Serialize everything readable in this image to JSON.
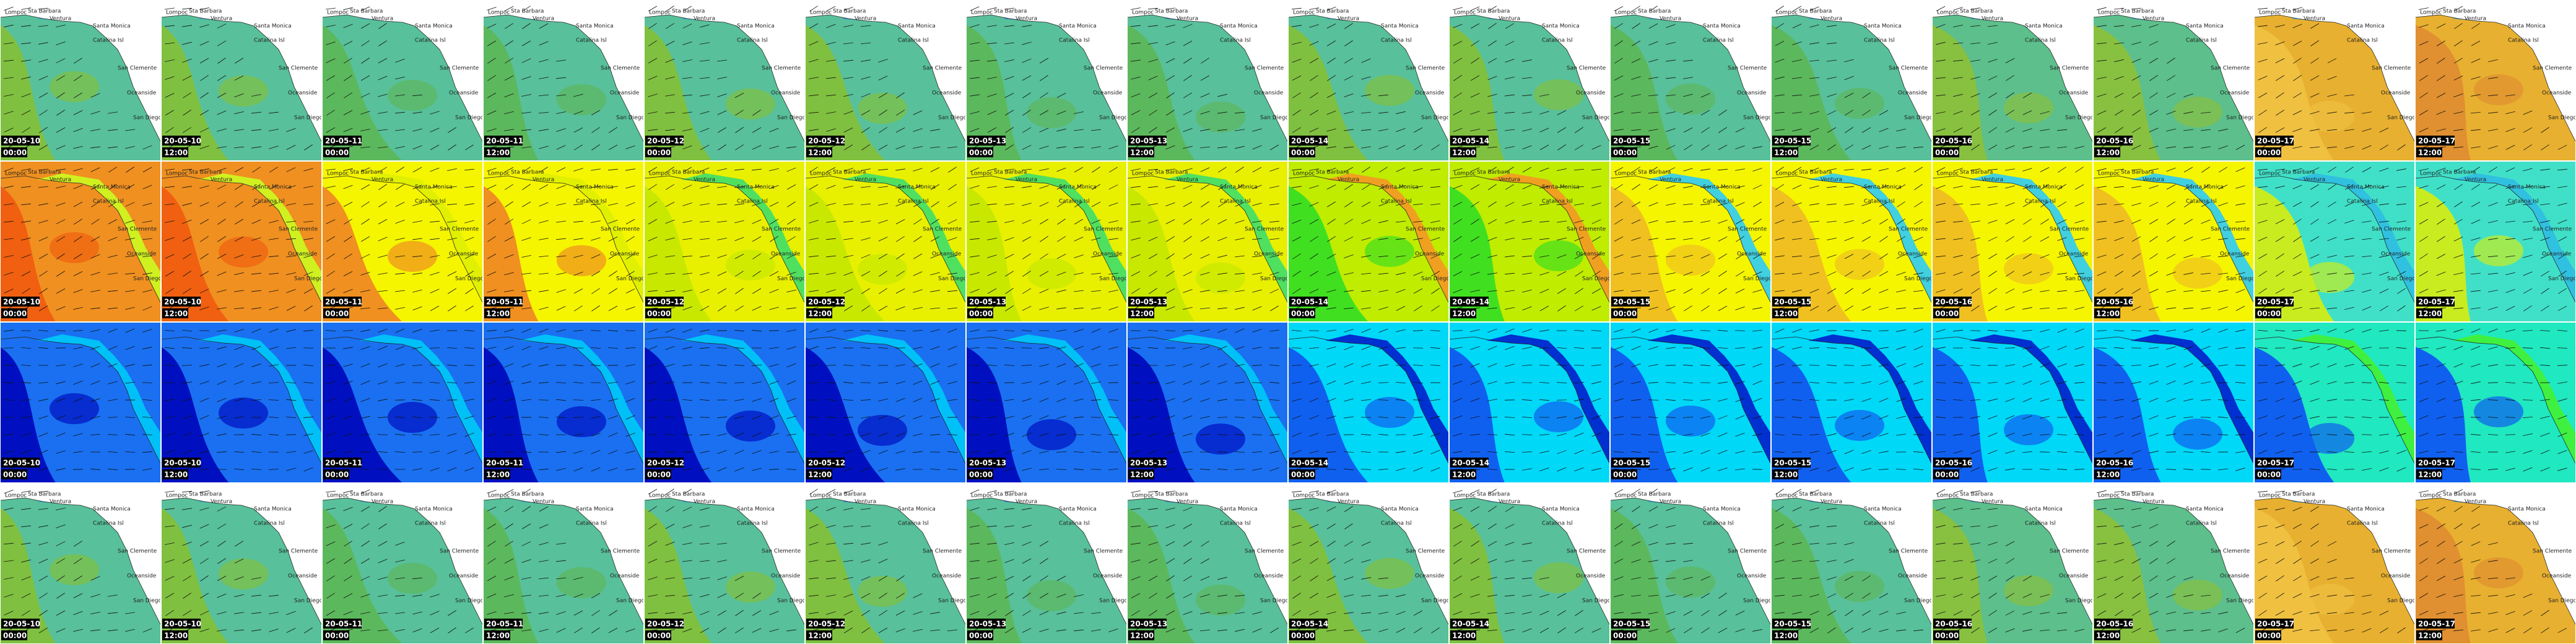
{
  "columns": [
    {
      "date": "20-05-10",
      "time": "00:00"
    },
    {
      "date": "20-05-10",
      "time": "12:00"
    },
    {
      "date": "20-05-11",
      "time": "00:00"
    },
    {
      "date": "20-05-11",
      "time": "12:00"
    },
    {
      "date": "20-05-12",
      "time": "00:00"
    },
    {
      "date": "20-05-12",
      "time": "12:00"
    },
    {
      "date": "20-05-13",
      "time": "00:00"
    },
    {
      "date": "20-05-13",
      "time": "12:00"
    },
    {
      "date": "20-05-14",
      "time": "00:00"
    },
    {
      "date": "20-05-14",
      "time": "12:00"
    },
    {
      "date": "20-05-15",
      "time": "00:00"
    },
    {
      "date": "20-05-15",
      "time": "12:00"
    },
    {
      "date": "20-05-16",
      "time": "00:00"
    },
    {
      "date": "20-05-16",
      "time": "12:00"
    },
    {
      "date": "20-05-17",
      "time": "00:00"
    },
    {
      "date": "20-05-17",
      "time": "12:00"
    }
  ],
  "places": [
    "Lompoc",
    "Sta Barbara",
    "Ventura",
    "Santa Monica",
    "Catalina Isl",
    "San Clemente",
    "Oceanside",
    "San Diego"
  ]
}
